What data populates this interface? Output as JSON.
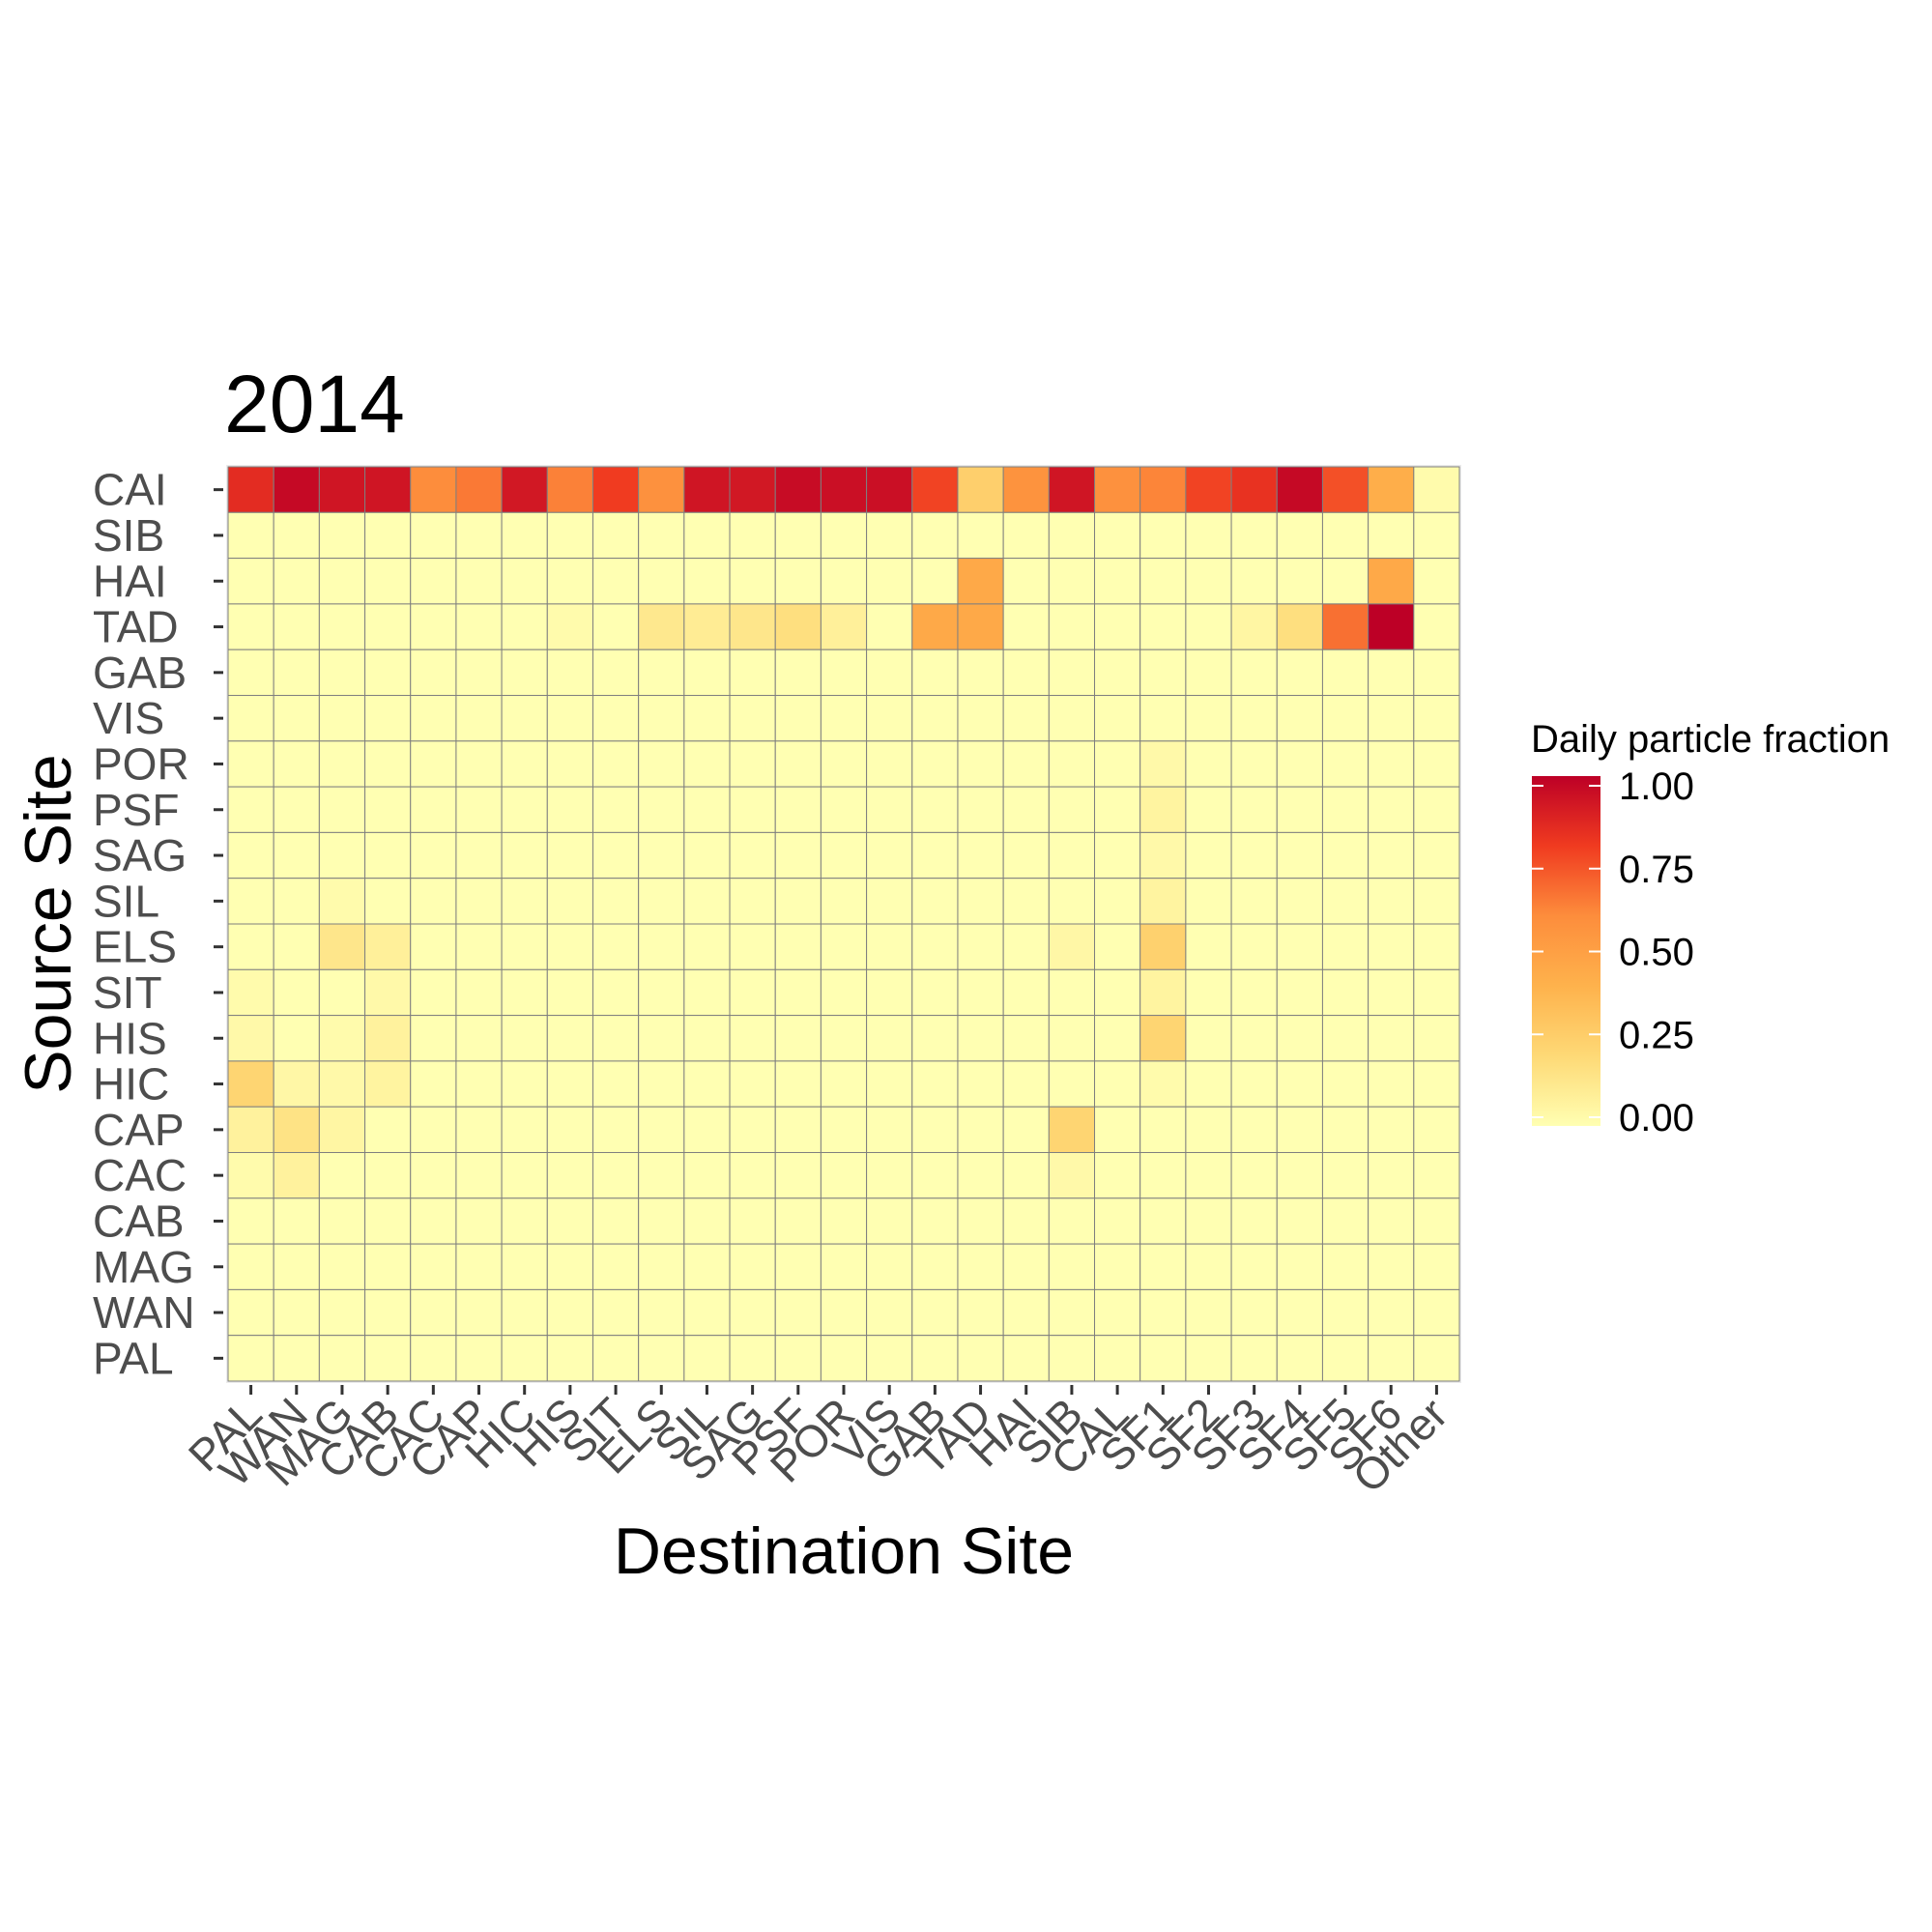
{
  "chart_data": {
    "type": "heatmap",
    "title": "2014",
    "xlabel": "Destination Site",
    "ylabel": "Source Site",
    "x_categories": [
      "PAL",
      "WAN",
      "MAG",
      "CAB",
      "CAC",
      "CAP",
      "HIC",
      "HIS",
      "SIT",
      "ELS",
      "SIL",
      "SAG",
      "PSF",
      "POR",
      "VIS",
      "GAB",
      "TAD",
      "HAI",
      "SIB",
      "CAL",
      "SF1",
      "SF2",
      "SF3",
      "SF4",
      "SF5",
      "SF6",
      "Other"
    ],
    "y_categories": [
      "CAI",
      "SIB",
      "HAI",
      "TAD",
      "GAB",
      "VIS",
      "POR",
      "PSF",
      "SAG",
      "SIL",
      "ELS",
      "SIT",
      "HIS",
      "HIC",
      "CAP",
      "CAC",
      "CAB",
      "MAG",
      "WAN",
      "PAL"
    ],
    "values": [
      [
        0.85,
        0.97,
        0.93,
        0.93,
        0.6,
        0.65,
        0.92,
        0.63,
        0.8,
        0.58,
        0.93,
        0.92,
        0.96,
        0.95,
        0.95,
        0.78,
        0.25,
        0.57,
        0.93,
        0.58,
        0.62,
        0.78,
        0.83,
        0.97,
        0.75,
        0.42,
        0.02
      ],
      [
        0,
        0,
        0,
        0,
        0,
        0,
        0,
        0,
        0,
        0,
        0,
        0,
        0,
        0,
        0,
        0,
        0,
        0,
        0,
        0,
        0,
        0,
        0,
        0,
        0,
        0,
        0
      ],
      [
        0,
        0,
        0,
        0,
        0,
        0,
        0,
        0,
        0,
        0,
        0,
        0,
        0,
        0,
        0,
        0,
        0.45,
        0,
        0,
        0,
        0,
        0,
        0,
        0,
        0,
        0.45,
        0
      ],
      [
        0,
        0,
        0,
        0,
        0,
        0,
        0,
        0.02,
        0,
        0.12,
        0.1,
        0.13,
        0.17,
        0.08,
        0,
        0.45,
        0.45,
        0,
        0,
        0,
        0,
        0,
        0.05,
        0.17,
        0.67,
        1.0,
        0
      ],
      [
        0,
        0,
        0,
        0,
        0,
        0,
        0,
        0,
        0,
        0,
        0,
        0,
        0,
        0,
        0,
        0,
        0,
        0,
        0,
        0,
        0,
        0,
        0,
        0,
        0,
        0,
        0
      ],
      [
        0,
        0,
        0,
        0,
        0,
        0,
        0,
        0,
        0,
        0,
        0,
        0,
        0,
        0,
        0,
        0,
        0,
        0,
        0,
        0,
        0,
        0,
        0,
        0,
        0,
        0,
        0
      ],
      [
        0,
        0,
        0,
        0,
        0,
        0,
        0,
        0,
        0,
        0,
        0,
        0,
        0,
        0,
        0,
        0,
        0,
        0,
        0,
        0,
        0.03,
        0,
        0,
        0,
        0,
        0,
        0
      ],
      [
        0,
        0,
        0,
        0,
        0,
        0,
        0,
        0,
        0,
        0,
        0,
        0,
        0,
        0,
        0,
        0,
        0,
        0,
        0,
        0,
        0.06,
        0,
        0,
        0,
        0,
        0,
        0
      ],
      [
        0,
        0,
        0,
        0,
        0,
        0,
        0,
        0,
        0,
        0,
        0,
        0,
        0,
        0,
        0,
        0,
        0,
        0,
        0,
        0,
        0.03,
        0,
        0,
        0,
        0,
        0,
        0
      ],
      [
        0,
        0,
        0.02,
        0,
        0,
        0,
        0,
        0,
        0,
        0,
        0,
        0,
        0,
        0,
        0,
        0,
        0,
        0,
        0,
        0,
        0.06,
        0,
        0,
        0,
        0,
        0,
        0
      ],
      [
        0,
        0,
        0.13,
        0.08,
        0,
        0,
        0,
        0,
        0,
        0,
        0,
        0,
        0,
        0,
        0,
        0,
        0,
        0,
        0.04,
        0,
        0.24,
        0,
        0,
        0,
        0,
        0,
        0
      ],
      [
        0.02,
        0,
        0,
        0.03,
        0,
        0,
        0,
        0,
        0,
        0,
        0,
        0,
        0,
        0,
        0,
        0,
        0,
        0,
        0,
        0,
        0.06,
        0,
        0,
        0,
        0,
        0,
        0
      ],
      [
        0.03,
        0,
        0.02,
        0.07,
        0,
        0,
        0,
        0,
        0,
        0,
        0,
        0,
        0,
        0,
        0,
        0,
        0,
        0,
        0,
        0,
        0.22,
        0,
        0,
        0,
        0,
        0,
        0
      ],
      [
        0.22,
        0.04,
        0.03,
        0.06,
        0,
        0,
        0,
        0,
        0,
        0,
        0,
        0,
        0,
        0,
        0,
        0,
        0,
        0,
        0,
        0,
        0.02,
        0,
        0,
        0,
        0,
        0,
        0
      ],
      [
        0.07,
        0.15,
        0.05,
        0,
        0,
        0,
        0,
        0,
        0,
        0,
        0,
        0,
        0,
        0,
        0,
        0,
        0,
        0,
        0.22,
        0,
        0,
        0,
        0,
        0,
        0,
        0,
        0
      ],
      [
        0.02,
        0.07,
        0,
        0,
        0,
        0,
        0,
        0,
        0,
        0,
        0,
        0,
        0,
        0,
        0,
        0,
        0,
        0,
        0.03,
        0,
        0,
        0,
        0,
        0,
        0,
        0,
        0
      ],
      [
        0,
        0,
        0,
        0,
        0,
        0,
        0,
        0,
        0,
        0,
        0,
        0,
        0,
        0,
        0,
        0,
        0,
        0,
        0,
        0,
        0,
        0,
        0,
        0,
        0,
        0,
        0
      ],
      [
        0,
        0,
        0,
        0,
        0,
        0,
        0,
        0,
        0,
        0,
        0,
        0,
        0,
        0,
        0,
        0,
        0,
        0,
        0,
        0,
        0,
        0,
        0,
        0,
        0,
        0,
        0
      ],
      [
        0,
        0,
        0,
        0,
        0,
        0,
        0,
        0,
        0,
        0,
        0,
        0,
        0,
        0,
        0,
        0,
        0,
        0,
        0,
        0,
        0,
        0,
        0,
        0,
        0,
        0,
        0
      ],
      [
        0,
        0,
        0,
        0,
        0,
        0,
        0,
        0,
        0,
        0,
        0,
        0,
        0,
        0,
        0,
        0,
        0,
        0,
        0,
        0,
        0,
        0,
        0,
        0,
        0,
        0,
        0
      ]
    ],
    "value_range": [
      0,
      1
    ],
    "legend": {
      "title": "Daily particle fraction",
      "ticks": [
        1.0,
        0.75,
        0.5,
        0.25,
        0.0
      ],
      "tick_labels": [
        "1.00",
        "0.75",
        "0.50",
        "0.25",
        "0.00"
      ],
      "placement": "right"
    },
    "colorscale": [
      "#ffffb2",
      "#fed976",
      "#feb24c",
      "#fd8d3c",
      "#f03b20",
      "#bd0026"
    ],
    "grid": true
  }
}
